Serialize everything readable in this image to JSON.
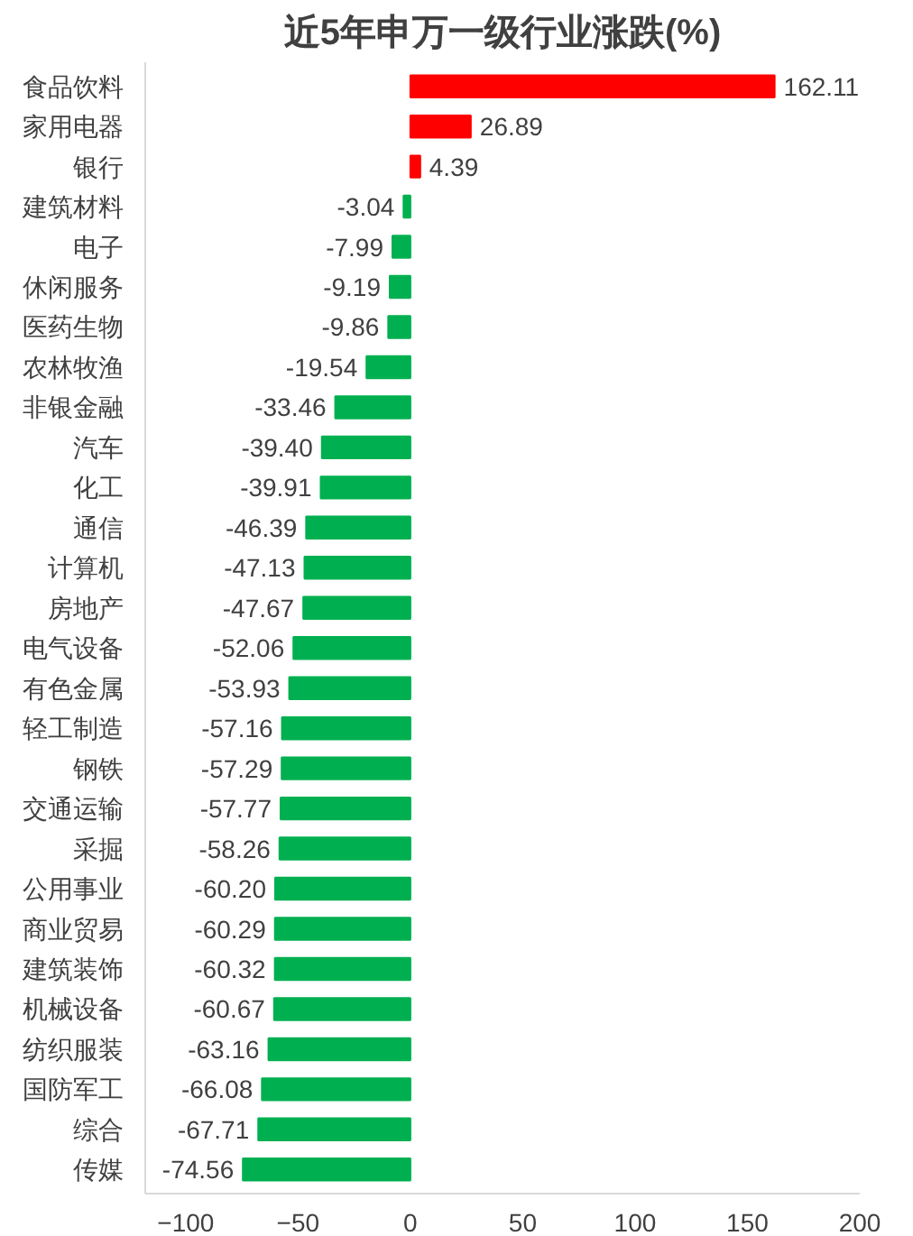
{
  "chart_data": {
    "type": "bar",
    "orientation": "horizontal",
    "title": "近5年申万一级行业涨跌(%)",
    "categories": [
      "食品饮料",
      "家用电器",
      "银行",
      "建筑材料",
      "电子",
      "休闲服务",
      "医药生物",
      "农林牧渔",
      "非银金融",
      "汽车",
      "化工",
      "通信",
      "计算机",
      "房地产",
      "电气设备",
      "有色金属",
      "轻工制造",
      "钢铁",
      "交通运输",
      "采掘",
      "公用事业",
      "商业贸易",
      "建筑装饰",
      "机械设备",
      "纺织服装",
      "国防军工",
      "综合",
      "传媒"
    ],
    "values": [
      162.11,
      26.89,
      4.39,
      -3.04,
      -7.99,
      -9.19,
      -9.86,
      -19.54,
      -33.46,
      -39.4,
      -39.91,
      -46.39,
      -47.13,
      -47.67,
      -52.06,
      -53.93,
      -57.16,
      -57.29,
      -57.77,
      -58.26,
      -60.2,
      -60.29,
      -60.32,
      -60.67,
      -63.16,
      -66.08,
      -67.71,
      -74.56
    ],
    "colors": [
      "#ff0000",
      "#ff0000",
      "#ff0000",
      "#00b050",
      "#00b050",
      "#00b050",
      "#00b050",
      "#00b050",
      "#00b050",
      "#00b050",
      "#00b050",
      "#00b050",
      "#00b050",
      "#00b050",
      "#00b050",
      "#00b050",
      "#00b050",
      "#00b050",
      "#00b050",
      "#00b050",
      "#00b050",
      "#00b050",
      "#00b050",
      "#00b050",
      "#00b050",
      "#00b050",
      "#00b050",
      "#00b050"
    ],
    "value_labels": [
      "162.11",
      "26.89",
      "4.39",
      "-3.04",
      "-7.99",
      "-9.19",
      "-9.86",
      "-19.54",
      "-33.46",
      "-39.40",
      "-39.91",
      "-46.39",
      "-47.13",
      "-47.67",
      "-52.06",
      "-53.93",
      "-57.16",
      "-57.29",
      "-57.77",
      "-58.26",
      "-60.20",
      "-60.29",
      "-60.32",
      "-60.67",
      "-63.16",
      "-66.08",
      "-67.71",
      "-74.56"
    ],
    "xlim": [
      -118,
      200
    ],
    "xticks": [
      -100,
      -50,
      0,
      50,
      100,
      150,
      200
    ],
    "grid": false
  }
}
